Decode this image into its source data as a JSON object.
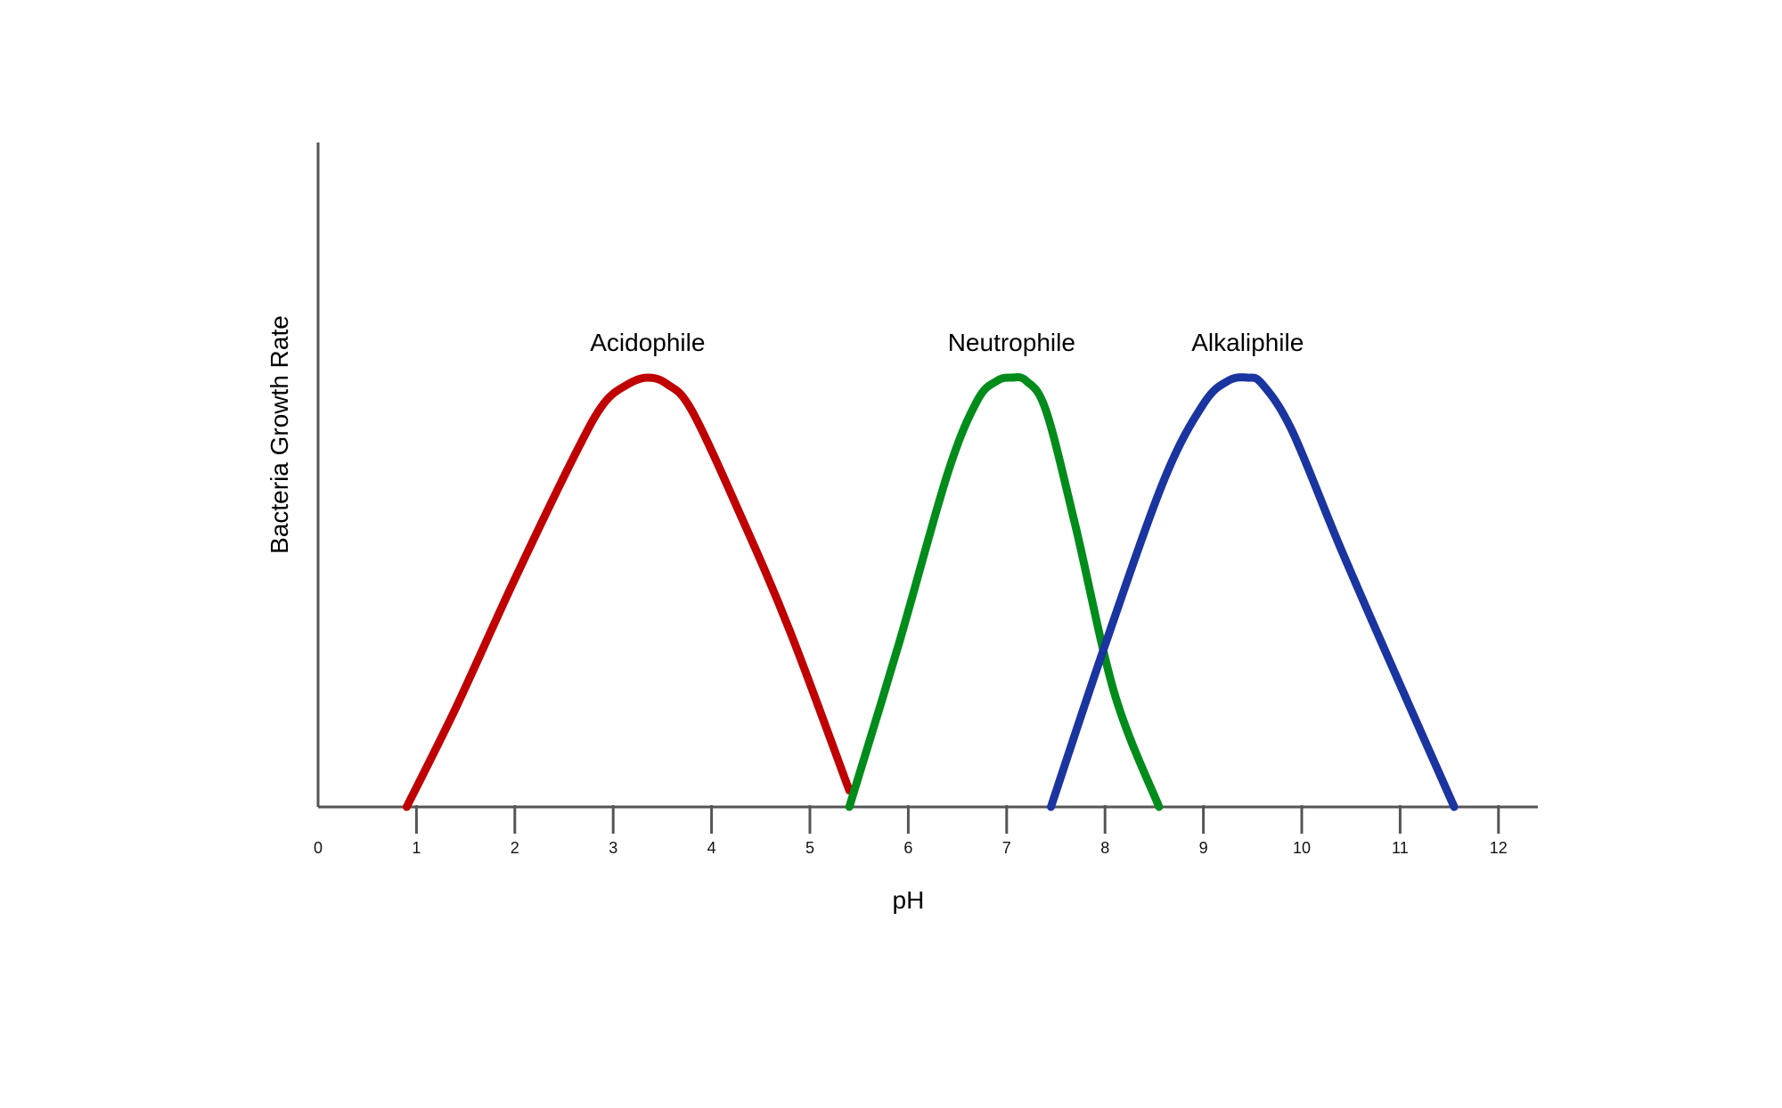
{
  "chart_data": {
    "type": "line",
    "title": "",
    "xlabel": "pH",
    "ylabel": "Bacteria Growth Rate",
    "xlim": [
      0,
      12.4
    ],
    "ylim": [
      0,
      1.55
    ],
    "x_ticks": [
      0,
      1,
      2,
      3,
      4,
      5,
      6,
      7,
      8,
      9,
      10,
      11,
      12
    ],
    "x_tick_labels": [
      "0",
      "1",
      "2",
      "3",
      "4",
      "5",
      "6",
      "7",
      "8",
      "9",
      "10",
      "11",
      "12"
    ],
    "y_ticks_shown": false,
    "grid": false,
    "legend": "none",
    "series": [
      {
        "name": "Acidophile",
        "color": "#c00000",
        "x": [
          0.9,
          1.4,
          2.0,
          2.6,
          2.9,
          3.15,
          3.35,
          3.55,
          3.8,
          4.3,
          4.8,
          5.4
        ],
        "y": [
          0.0,
          0.3,
          0.69,
          1.06,
          1.22,
          1.28,
          1.3,
          1.28,
          1.2,
          0.88,
          0.53,
          0.05
        ]
      },
      {
        "name": "Neutrophile",
        "color": "#008c1a",
        "x": [
          5.4,
          5.9,
          6.4,
          6.7,
          6.9,
          7.05,
          7.2,
          7.4,
          7.7,
          8.1,
          8.55
        ],
        "y": [
          0.0,
          0.49,
          1.01,
          1.23,
          1.29,
          1.3,
          1.29,
          1.2,
          0.85,
          0.34,
          0.0
        ]
      },
      {
        "name": "Alkaliphile",
        "color": "#1a34a0",
        "x": [
          7.45,
          8.0,
          8.6,
          9.0,
          9.25,
          9.45,
          9.6,
          9.9,
          10.4,
          11.0,
          11.55
        ],
        "y": [
          0.0,
          0.49,
          0.99,
          1.22,
          1.29,
          1.3,
          1.28,
          1.14,
          0.78,
          0.37,
          0.0
        ]
      }
    ]
  }
}
